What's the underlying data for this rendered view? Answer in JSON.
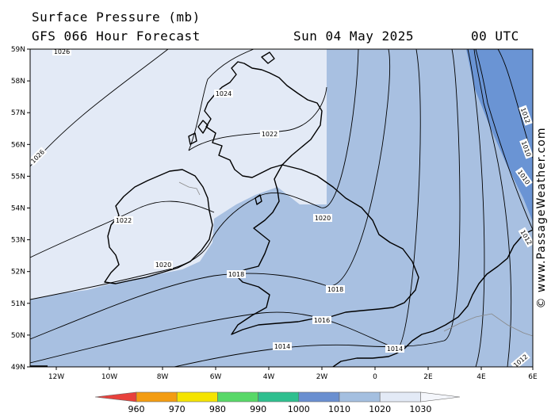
{
  "header": {
    "title": "Surface Pressure (mb)",
    "forecast": "GFS 066 Hour Forecast",
    "date": "Sun 04 May 2025",
    "time": "00 UTC"
  },
  "credit": "© www.PassageWeather.com",
  "map": {
    "lat_ticks": [
      "59N",
      "58N",
      "57N",
      "56N",
      "55N",
      "54N",
      "53N",
      "52N",
      "51N",
      "50N",
      "49N"
    ],
    "lon_ticks": [
      "12W",
      "10W",
      "8W",
      "6W",
      "4W",
      "2W",
      "0",
      "2E",
      "4E",
      "6E"
    ],
    "isobar_labels": [
      "1026",
      "1024",
      "1022",
      "1026",
      "1022",
      "1020",
      "1020",
      "1018",
      "1018",
      "1016",
      "1014",
      "1014",
      "1012",
      "1012",
      "1010",
      "1010",
      "1012"
    ]
  },
  "legend": {
    "labels": [
      "960",
      "970",
      "980",
      "990",
      "1000",
      "1010",
      "1020",
      "1030"
    ],
    "colors": [
      "#e8413c",
      "#f39c12",
      "#f5e400",
      "#58d868",
      "#2fbf8f",
      "#6a8fd0",
      "#a4bfe0",
      "#e3eaf6"
    ]
  },
  "colors": {
    "lightest": "#e3eaf6",
    "light": "#a8c0e1",
    "medium": "#6a94d4",
    "coast": "#000000"
  }
}
